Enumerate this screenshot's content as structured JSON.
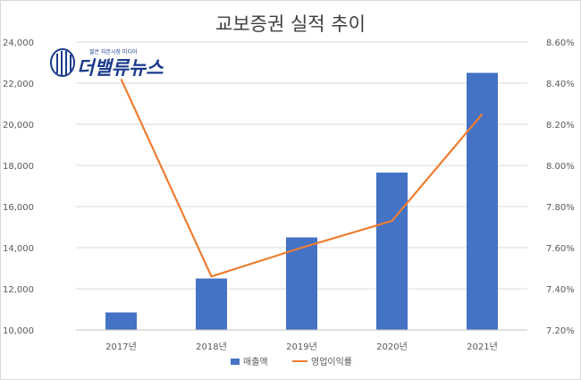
{
  "chart_data": {
    "type": "bar",
    "title": "교보증권 실적 추이",
    "categories": [
      "2017년",
      "2018년",
      "2019년",
      "2020년",
      "2021년"
    ],
    "series": [
      {
        "name": "매출액",
        "type": "bar",
        "axis": "left",
        "color": "#4472c4",
        "values": [
          10850,
          12500,
          14500,
          17650,
          22500
        ]
      },
      {
        "name": "영업이익률",
        "type": "line",
        "axis": "right",
        "color": "#ed7d31",
        "values": [
          8.42,
          7.46,
          7.6,
          7.73,
          8.25
        ]
      }
    ],
    "y_left": {
      "min": 10000,
      "max": 24000,
      "step": 2000,
      "ticks": [
        "10,000",
        "12,000",
        "14,000",
        "16,000",
        "18,000",
        "20,000",
        "22,000",
        "24,000"
      ]
    },
    "y_right": {
      "min": 7.2,
      "max": 8.6,
      "step": 0.2,
      "ticks": [
        "7.20%",
        "7.40%",
        "7.60%",
        "7.80%",
        "8.00%",
        "8.20%",
        "8.40%",
        "8.60%"
      ]
    },
    "grid": true,
    "legend_position": "bottom"
  },
  "logo": {
    "name": "더밸류뉴스",
    "tagline": "젊은 자본시장 미디어",
    "color": "#1a3a8c"
  }
}
